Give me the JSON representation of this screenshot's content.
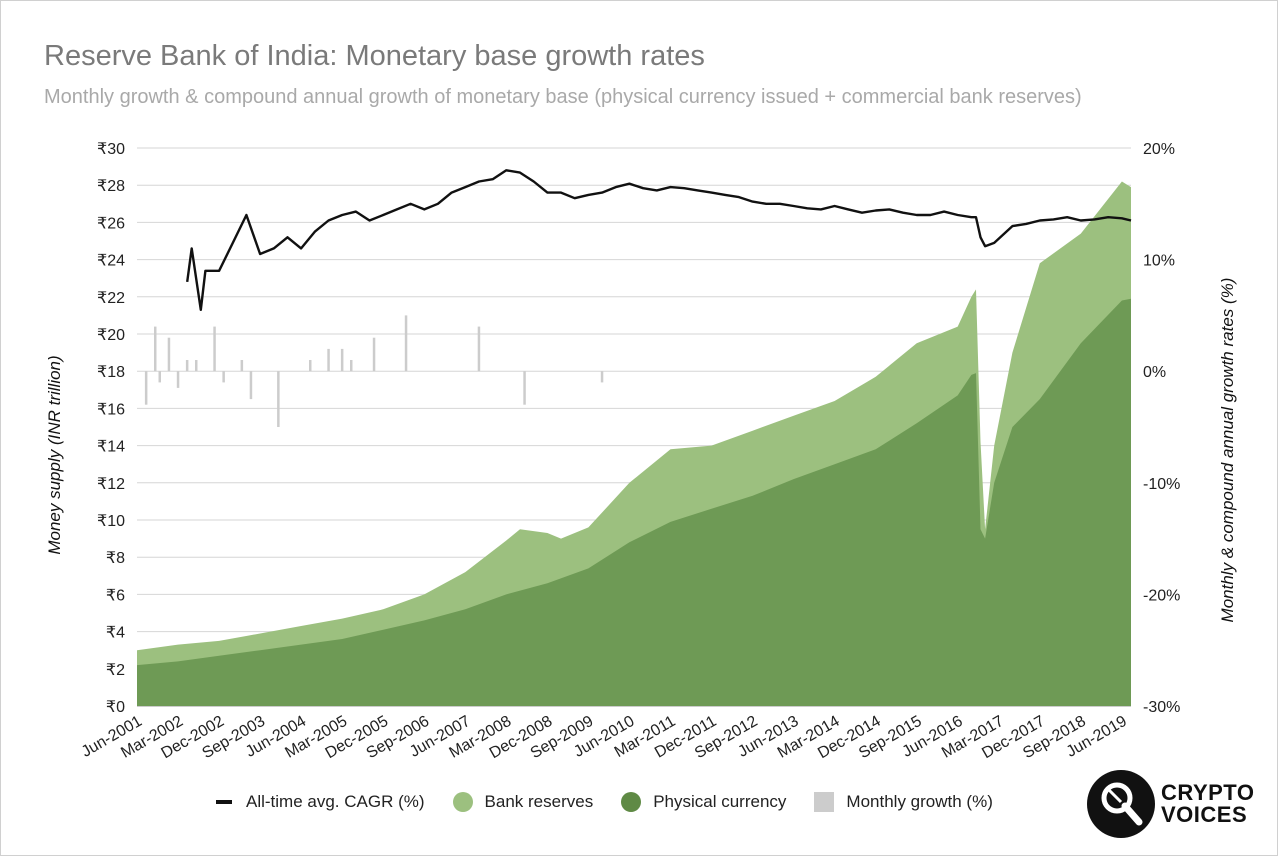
{
  "header": {
    "title": "Reserve Bank of India: Monetary base growth rates",
    "subtitle": "Monthly growth & compound annual growth of monetary base (physical currency issued + commercial bank reserves)"
  },
  "legend": {
    "cagr": "All-time avg. CAGR (%)",
    "reserves": "Bank reserves",
    "currency": "Physical currency",
    "monthly": "Monthly growth (%)"
  },
  "logo": {
    "line1": "CRYPTO",
    "line2": "VOICES"
  },
  "colors": {
    "reserves": "#9cc07f",
    "currency": "#6e9a55",
    "monthly": "#cccccc",
    "cagr": "#111111",
    "grid": "#d6d6d6"
  },
  "chart_data": {
    "type": "area",
    "ylabel_left": "Money supply (INR trillion)",
    "ylabel_right": "Monthly & compound annual growth rates (%)",
    "ylim_left": [
      0,
      30
    ],
    "ylim_right": [
      -30,
      20
    ],
    "yticks_left": [
      "₹0",
      "₹2",
      "₹4",
      "₹6",
      "₹8",
      "₹10",
      "₹12",
      "₹14",
      "₹16",
      "₹18",
      "₹20",
      "₹22",
      "₹24",
      "₹26",
      "₹28",
      "₹30"
    ],
    "yticks_right": [
      "-30%",
      "-20%",
      "-10%",
      "0%",
      "10%",
      "20%"
    ],
    "x_tick_labels": [
      "Jun-2001",
      "Mar-2002",
      "Dec-2002",
      "Sep-2003",
      "Jun-2004",
      "Mar-2005",
      "Dec-2005",
      "Sep-2006",
      "Jun-2007",
      "Mar-2008",
      "Dec-2008",
      "Sep-2009",
      "Jun-2010",
      "Mar-2011",
      "Dec-2011",
      "Sep-2012",
      "Jun-2013",
      "Mar-2014",
      "Dec-2014",
      "Sep-2015",
      "Jun-2016",
      "Mar-2017",
      "Dec-2017",
      "Sep-2018",
      "Jun-2019"
    ],
    "x_range": [
      "Jun-2001",
      "Aug-2019"
    ],
    "grid": true,
    "legend_position": "bottom",
    "series": [
      {
        "name": "Physical currency",
        "type": "area",
        "axis": "left",
        "points": [
          [
            "Jun-2001",
            2.2
          ],
          [
            "Mar-2002",
            2.4
          ],
          [
            "Dec-2002",
            2.7
          ],
          [
            "Sep-2003",
            3.0
          ],
          [
            "Jun-2004",
            3.3
          ],
          [
            "Mar-2005",
            3.6
          ],
          [
            "Dec-2005",
            4.1
          ],
          [
            "Sep-2006",
            4.6
          ],
          [
            "Jun-2007",
            5.2
          ],
          [
            "Mar-2008",
            6.0
          ],
          [
            "Dec-2008",
            6.6
          ],
          [
            "Sep-2009",
            7.4
          ],
          [
            "Jun-2010",
            8.8
          ],
          [
            "Mar-2011",
            9.9
          ],
          [
            "Dec-2011",
            10.6
          ],
          [
            "Sep-2012",
            11.3
          ],
          [
            "Jun-2013",
            12.2
          ],
          [
            "Mar-2014",
            13.0
          ],
          [
            "Dec-2014",
            13.8
          ],
          [
            "Sep-2015",
            15.2
          ],
          [
            "Jun-2016",
            16.7
          ],
          [
            "Sep-2016",
            17.8
          ],
          [
            "Oct-2016",
            17.9
          ],
          [
            "Nov-2016",
            9.5
          ],
          [
            "Dec-2016",
            9.0
          ],
          [
            "Feb-2017",
            12.0
          ],
          [
            "Jun-2017",
            15.0
          ],
          [
            "Dec-2017",
            16.5
          ],
          [
            "Sep-2018",
            19.5
          ],
          [
            "Jun-2019",
            21.8
          ],
          [
            "Aug-2019",
            21.9
          ]
        ]
      },
      {
        "name": "Bank reserves",
        "type": "area",
        "axis": "left",
        "points": [
          [
            "Jun-2001",
            3.0
          ],
          [
            "Mar-2002",
            3.3
          ],
          [
            "Dec-2002",
            3.5
          ],
          [
            "Sep-2003",
            3.9
          ],
          [
            "Jun-2004",
            4.3
          ],
          [
            "Mar-2005",
            4.7
          ],
          [
            "Dec-2005",
            5.2
          ],
          [
            "Sep-2006",
            6.0
          ],
          [
            "Jun-2007",
            7.2
          ],
          [
            "Mar-2008",
            8.9
          ],
          [
            "Jun-2008",
            9.5
          ],
          [
            "Dec-2008",
            9.3
          ],
          [
            "Mar-2009",
            9.0
          ],
          [
            "Sep-2009",
            9.6
          ],
          [
            "Jun-2010",
            12.0
          ],
          [
            "Mar-2011",
            13.8
          ],
          [
            "Dec-2011",
            14.0
          ],
          [
            "Sep-2012",
            14.8
          ],
          [
            "Jun-2013",
            15.6
          ],
          [
            "Mar-2014",
            16.4
          ],
          [
            "Dec-2014",
            17.7
          ],
          [
            "Sep-2015",
            19.5
          ],
          [
            "Jun-2016",
            20.4
          ],
          [
            "Sep-2016",
            22.0
          ],
          [
            "Oct-2016",
            22.4
          ],
          [
            "Nov-2016",
            14.2
          ],
          [
            "Dec-2016",
            9.5
          ],
          [
            "Feb-2017",
            14.0
          ],
          [
            "Jun-2017",
            19.0
          ],
          [
            "Dec-2017",
            23.8
          ],
          [
            "Sep-2018",
            25.4
          ],
          [
            "Jun-2019",
            28.2
          ],
          [
            "Aug-2019",
            27.9
          ]
        ]
      },
      {
        "name": "All-time avg. CAGR (%)",
        "type": "line",
        "axis": "right",
        "points": [
          [
            "May-2002",
            8.0
          ],
          [
            "Jun-2002",
            11.0
          ],
          [
            "Aug-2002",
            5.5
          ],
          [
            "Sep-2002",
            9.0
          ],
          [
            "Dec-2002",
            9.0
          ],
          [
            "Mar-2003",
            11.5
          ],
          [
            "Jun-2003",
            14.0
          ],
          [
            "Sep-2003",
            10.5
          ],
          [
            "Dec-2003",
            11.0
          ],
          [
            "Mar-2004",
            12.0
          ],
          [
            "Jun-2004",
            11.0
          ],
          [
            "Sep-2004",
            12.5
          ],
          [
            "Dec-2004",
            13.5
          ],
          [
            "Mar-2005",
            14.0
          ],
          [
            "Jun-2005",
            14.3
          ],
          [
            "Sep-2005",
            13.5
          ],
          [
            "Dec-2005",
            14.0
          ],
          [
            "Mar-2006",
            14.5
          ],
          [
            "Jun-2006",
            15.0
          ],
          [
            "Sep-2006",
            14.5
          ],
          [
            "Dec-2006",
            15.0
          ],
          [
            "Mar-2007",
            16.0
          ],
          [
            "Jun-2007",
            16.5
          ],
          [
            "Sep-2007",
            17.0
          ],
          [
            "Dec-2007",
            17.2
          ],
          [
            "Mar-2008",
            18.0
          ],
          [
            "Jun-2008",
            17.8
          ],
          [
            "Sep-2008",
            17.0
          ],
          [
            "Dec-2008",
            16.0
          ],
          [
            "Mar-2009",
            16.0
          ],
          [
            "Jun-2009",
            15.5
          ],
          [
            "Sep-2009",
            15.8
          ],
          [
            "Dec-2009",
            16.0
          ],
          [
            "Mar-2010",
            16.5
          ],
          [
            "Jun-2010",
            16.8
          ],
          [
            "Sep-2010",
            16.4
          ],
          [
            "Dec-2010",
            16.2
          ],
          [
            "Mar-2011",
            16.5
          ],
          [
            "Jun-2011",
            16.4
          ],
          [
            "Sep-2011",
            16.2
          ],
          [
            "Dec-2011",
            16.0
          ],
          [
            "Mar-2012",
            15.8
          ],
          [
            "Jun-2012",
            15.6
          ],
          [
            "Sep-2012",
            15.2
          ],
          [
            "Dec-2012",
            15.0
          ],
          [
            "Mar-2013",
            15.0
          ],
          [
            "Jun-2013",
            14.8
          ],
          [
            "Sep-2013",
            14.6
          ],
          [
            "Dec-2013",
            14.5
          ],
          [
            "Mar-2014",
            14.8
          ],
          [
            "Jun-2014",
            14.5
          ],
          [
            "Sep-2014",
            14.2
          ],
          [
            "Dec-2014",
            14.4
          ],
          [
            "Mar-2015",
            14.5
          ],
          [
            "Jun-2015",
            14.2
          ],
          [
            "Sep-2015",
            14.0
          ],
          [
            "Dec-2015",
            14.0
          ],
          [
            "Mar-2016",
            14.3
          ],
          [
            "Jun-2016",
            14.0
          ],
          [
            "Sep-2016",
            13.8
          ],
          [
            "Oct-2016",
            13.8
          ],
          [
            "Nov-2016",
            12.0
          ],
          [
            "Dec-2016",
            11.2
          ],
          [
            "Feb-2017",
            11.5
          ],
          [
            "Jun-2017",
            13.0
          ],
          [
            "Sep-2017",
            13.2
          ],
          [
            "Dec-2017",
            13.5
          ],
          [
            "Mar-2018",
            13.6
          ],
          [
            "Jun-2018",
            13.8
          ],
          [
            "Sep-2018",
            13.5
          ],
          [
            "Dec-2018",
            13.6
          ],
          [
            "Mar-2019",
            13.8
          ],
          [
            "Jun-2019",
            13.7
          ],
          [
            "Aug-2019",
            13.5
          ]
        ]
      },
      {
        "name": "Monthly growth (%)",
        "type": "bar",
        "axis": "right",
        "start": "Jun-2001",
        "values": [
          0,
          0,
          -3,
          0,
          4,
          -1,
          0,
          3,
          0,
          -1.5,
          0,
          1,
          0,
          1,
          0,
          0,
          0,
          4,
          0,
          -1,
          0,
          0,
          0,
          1,
          0,
          -2.5,
          0,
          0,
          0,
          0,
          0,
          -5,
          0,
          0,
          0,
          0,
          0,
          0,
          1,
          0,
          0,
          0,
          2,
          0,
          0,
          2,
          0,
          1,
          0,
          0,
          0,
          0,
          3,
          0,
          0,
          0,
          0,
          0,
          0,
          5,
          0,
          0,
          0,
          0,
          0,
          0,
          0,
          0,
          0,
          0,
          0,
          0,
          0,
          0,
          0,
          4,
          0,
          0,
          0,
          0,
          0,
          0,
          0,
          0,
          0,
          -3,
          0,
          0,
          0,
          0,
          0,
          0,
          0,
          0,
          0,
          0,
          0,
          0,
          0,
          0,
          0,
          0,
          -1,
          0,
          0,
          0,
          0,
          0,
          0,
          0,
          0,
          0,
          0,
          0,
          0,
          0,
          0,
          0,
          0,
          0,
          0,
          0,
          0,
          0,
          0,
          0,
          0,
          0,
          0,
          0,
          0,
          0,
          0,
          0,
          0,
          0,
          0,
          0,
          0,
          0,
          0,
          0,
          0,
          0,
          0,
          0,
          0,
          0,
          0,
          0,
          0,
          0,
          0,
          0,
          0,
          0,
          0,
          0,
          0,
          0,
          0,
          0,
          0,
          0,
          0,
          0,
          0,
          0,
          0,
          0,
          0,
          0,
          0,
          0,
          0,
          0,
          0,
          0,
          0,
          0,
          0,
          0,
          0,
          0,
          0,
          0,
          0,
          0,
          0,
          0,
          0,
          0,
          0,
          0,
          0,
          0,
          0,
          0,
          0,
          0,
          0,
          0,
          0,
          0,
          0,
          0,
          0,
          0,
          0,
          0,
          0,
          0,
          0,
          0,
          0,
          0,
          0,
          0,
          0,
          0
        ]
      }
    ]
  }
}
